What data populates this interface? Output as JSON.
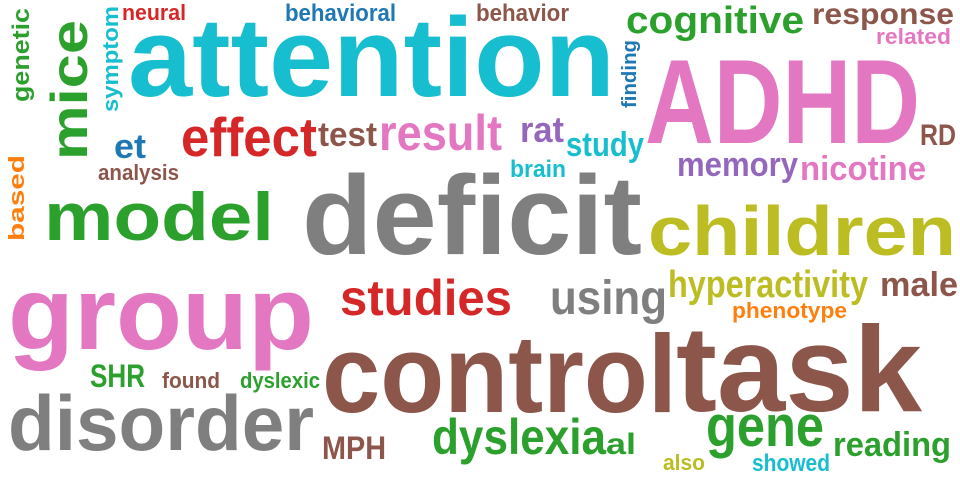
{
  "palette": {
    "cyan": "#17becf",
    "pink": "#e377c2",
    "gray": "#7f7f7f",
    "brown": "#8c564b",
    "green": "#2ca02c",
    "red": "#d62728",
    "olive": "#bcbd22",
    "purple": "#9467bd",
    "blue": "#1f77b4",
    "orange": "#ff7f0e"
  },
  "words": [
    {
      "id": "attention",
      "text": "attention",
      "color": "#17becf"
    },
    {
      "id": "adhd",
      "text": "ADHD",
      "color": "#e377c2"
    },
    {
      "id": "deficit",
      "text": "deficit",
      "color": "#7f7f7f"
    },
    {
      "id": "group",
      "text": "group",
      "color": "#e377c2"
    },
    {
      "id": "control",
      "text": "control",
      "color": "#8c564b"
    },
    {
      "id": "task",
      "text": "task",
      "color": "#8c564b"
    },
    {
      "id": "disorder",
      "text": "disorder",
      "color": "#7f7f7f"
    },
    {
      "id": "children",
      "text": "children",
      "color": "#bcbd22"
    },
    {
      "id": "model",
      "text": "model",
      "color": "#2ca02c"
    },
    {
      "id": "mice",
      "text": "mice",
      "color": "#2ca02c"
    },
    {
      "id": "effect",
      "text": "effect",
      "color": "#d62728"
    },
    {
      "id": "result",
      "text": "result",
      "color": "#e377c2"
    },
    {
      "id": "cognitive",
      "text": "cognitive",
      "color": "#2ca02c"
    },
    {
      "id": "response",
      "text": "response",
      "color": "#8c564b"
    },
    {
      "id": "studies",
      "text": "studies",
      "color": "#d62728"
    },
    {
      "id": "using",
      "text": "using",
      "color": "#7f7f7f"
    },
    {
      "id": "dyslexia",
      "text": "dyslexia",
      "color": "#2ca02c"
    },
    {
      "id": "gene",
      "text": "gene",
      "color": "#2ca02c"
    },
    {
      "id": "hyperactivity",
      "text": "hyperactivity",
      "color": "#bcbd22"
    },
    {
      "id": "reading",
      "text": "reading",
      "color": "#2ca02c"
    },
    {
      "id": "memory",
      "text": "memory",
      "color": "#9467bd"
    },
    {
      "id": "nicotine",
      "text": "nicotine",
      "color": "#e377c2"
    },
    {
      "id": "male",
      "text": "male",
      "color": "#8c564b"
    },
    {
      "id": "test",
      "text": "test",
      "color": "#8c564b"
    },
    {
      "id": "rat",
      "text": "rat",
      "color": "#9467bd"
    },
    {
      "id": "study",
      "text": "study",
      "color": "#17becf"
    },
    {
      "id": "mph",
      "text": "MPH",
      "color": "#8c564b"
    },
    {
      "id": "shr",
      "text": "SHR",
      "color": "#2ca02c"
    },
    {
      "id": "et",
      "text": "et",
      "color": "#1f77b4"
    },
    {
      "id": "rd",
      "text": "RD",
      "color": "#8c564b"
    },
    {
      "id": "al",
      "text": "al",
      "color": "#2ca02c"
    },
    {
      "id": "behavioral",
      "text": "behavioral",
      "color": "#1f77b4"
    },
    {
      "id": "behavior",
      "text": "behavior",
      "color": "#8c564b"
    },
    {
      "id": "neural",
      "text": "neural",
      "color": "#d62728"
    },
    {
      "id": "symptom",
      "text": "symptom",
      "color": "#17becf"
    },
    {
      "id": "genetic",
      "text": "genetic",
      "color": "#2ca02c"
    },
    {
      "id": "related",
      "text": "related",
      "color": "#e377c2"
    },
    {
      "id": "finding",
      "text": "finding",
      "color": "#1f77b4"
    },
    {
      "id": "analysis",
      "text": "analysis",
      "color": "#8c564b"
    },
    {
      "id": "based",
      "text": "based",
      "color": "#ff7f0e"
    },
    {
      "id": "brain",
      "text": "brain",
      "color": "#17becf"
    },
    {
      "id": "phenotype",
      "text": "phenotype",
      "color": "#ff7f0e"
    },
    {
      "id": "found",
      "text": "found",
      "color": "#8c564b"
    },
    {
      "id": "dyslexic",
      "text": "dyslexic",
      "color": "#2ca02c"
    },
    {
      "id": "also",
      "text": "also",
      "color": "#bcbd22"
    },
    {
      "id": "showed",
      "text": "showed",
      "color": "#17becf"
    }
  ]
}
